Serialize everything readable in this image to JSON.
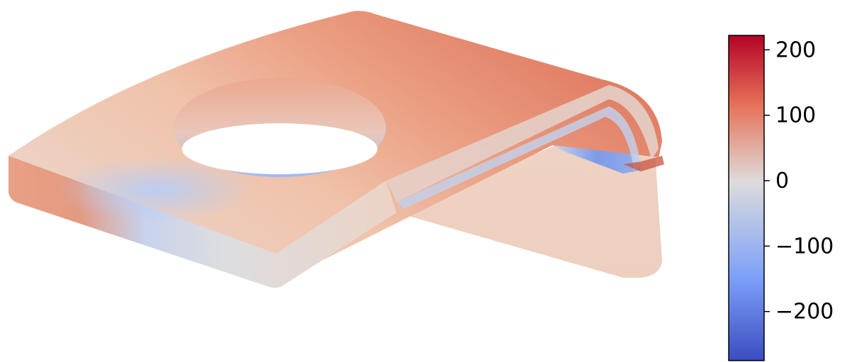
{
  "figure": {
    "type": "contour-3d",
    "colormap": "coolwarm",
    "colorbar": {
      "min": -275,
      "max": 222,
      "orientation": "vertical",
      "placement": "right",
      "ticks": [
        {
          "value": 200,
          "label": "200"
        },
        {
          "value": 100,
          "label": "100"
        },
        {
          "value": 0,
          "label": "0"
        },
        {
          "value": -100,
          "label": "−100"
        },
        {
          "value": -200,
          "label": "−200"
        }
      ],
      "colors": {
        "max": "#b40426",
        "high": "#e7745b",
        "mid": "#dddcdc",
        "low": "#7b9ff9",
        "min": "#3b4cc0"
      }
    }
  }
}
